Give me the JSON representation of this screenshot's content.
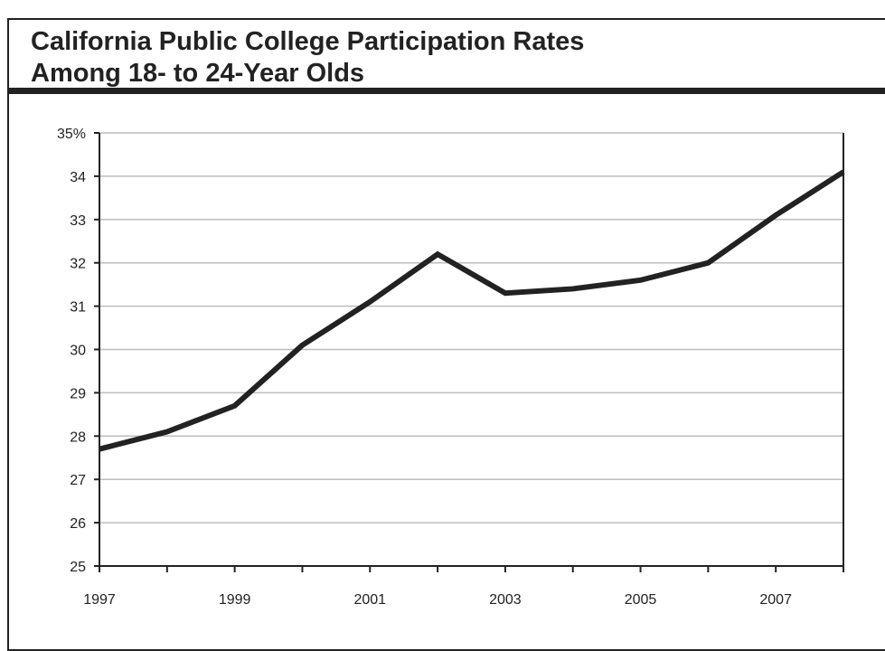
{
  "chart_data": {
    "type": "line",
    "title": "California Public College Participation Rates",
    "subtitle": "Among 18- to 24-Year Olds",
    "xlabel": "",
    "ylabel": "",
    "x": [
      1997,
      1998,
      1999,
      2000,
      2001,
      2002,
      2003,
      2004,
      2005,
      2006,
      2007,
      2008
    ],
    "xlim": [
      1997,
      2008
    ],
    "ylim": [
      25,
      35
    ],
    "grid": true,
    "x_tick_values": [
      1997,
      1999,
      2001,
      2003,
      2005,
      2007
    ],
    "x_tick_labels": [
      "1997",
      "1999",
      "2001",
      "2003",
      "2005",
      "2007"
    ],
    "y_tick_values": [
      25,
      26,
      27,
      28,
      29,
      30,
      31,
      32,
      33,
      34,
      35
    ],
    "y_tick_labels": [
      "25",
      "26",
      "27",
      "28",
      "29",
      "30",
      "31",
      "32",
      "33",
      "34",
      "35%"
    ],
    "series": [
      {
        "values": [
          27.7,
          28.1,
          28.7,
          30.1,
          31.1,
          32.2,
          31.3,
          31.4,
          31.6,
          32.0,
          33.1,
          34.1
        ],
        "color": "#222222"
      }
    ]
  }
}
